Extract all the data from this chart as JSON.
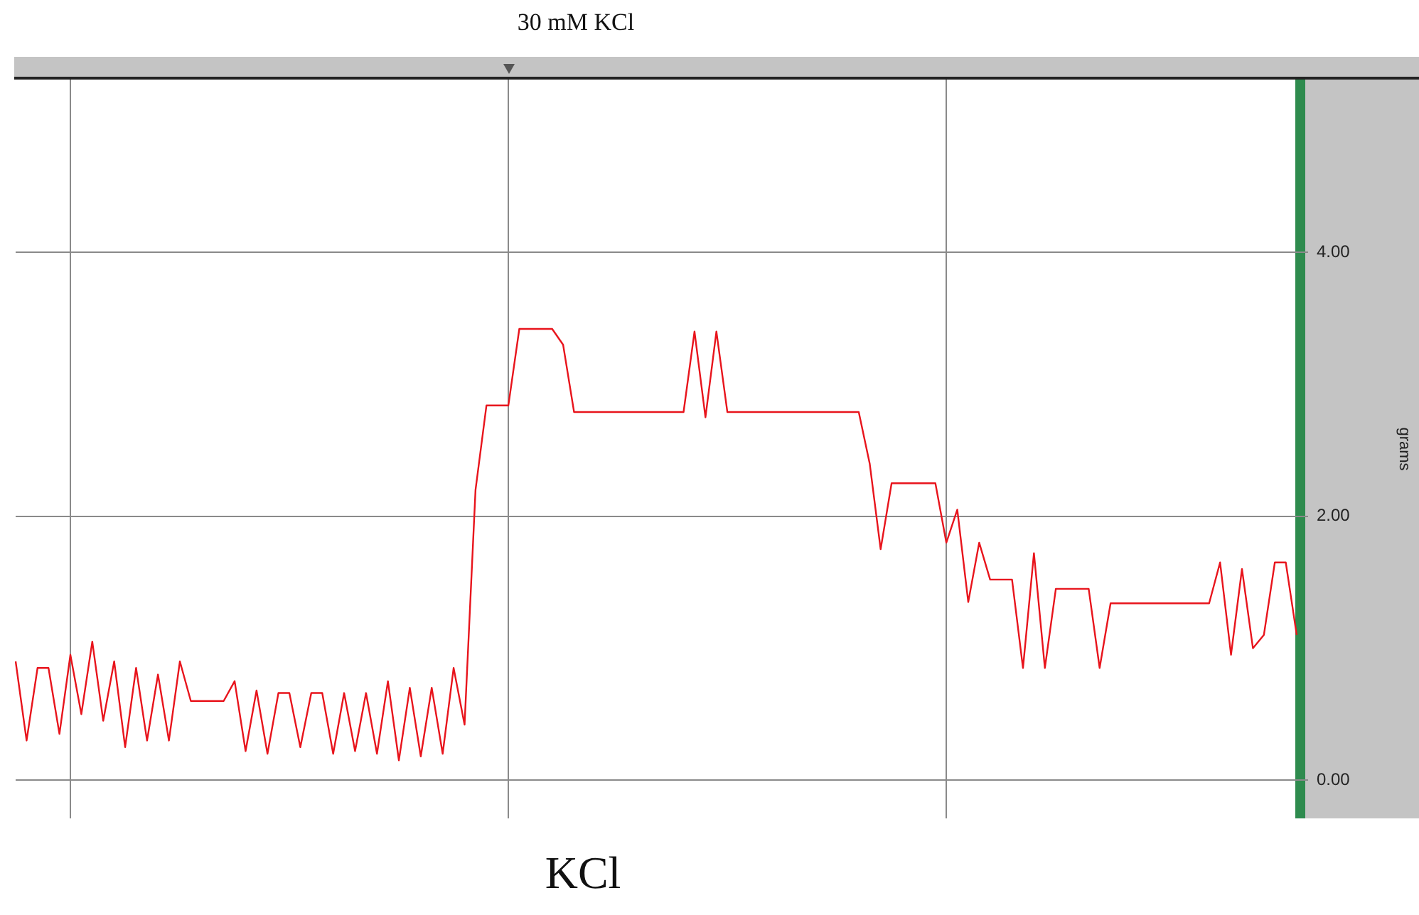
{
  "chart_data": {
    "type": "line",
    "title": "30 mM KCl",
    "ylabel": "grams",
    "annotations": [
      "KCl"
    ],
    "color": "#e8141c",
    "categories": [
      null,
      null,
      null,
      null,
      null,
      null,
      null,
      null,
      null,
      null,
      null,
      null,
      null,
      null,
      null,
      null,
      null,
      null,
      null,
      null,
      null,
      null,
      null,
      null,
      null,
      null,
      null,
      null,
      null,
      null,
      null,
      null,
      null,
      null,
      null,
      null,
      null,
      null,
      null,
      null,
      null,
      null,
      null,
      null,
      null,
      null,
      null,
      null,
      null,
      null,
      null,
      null,
      null,
      null,
      null,
      null,
      null,
      null,
      null,
      null,
      null,
      null,
      null,
      null,
      null,
      null,
      null,
      null,
      null,
      null,
      null,
      null,
      null,
      null,
      null,
      null,
      null,
      null,
      null,
      null,
      null,
      null,
      null,
      null,
      null,
      null,
      null,
      null,
      null,
      null,
      null,
      null,
      null,
      null,
      null,
      null,
      null,
      null,
      null,
      null,
      null,
      null,
      null,
      null,
      null,
      null,
      null,
      null,
      null,
      null,
      null,
      null,
      null,
      null,
      null,
      null,
      null,
      null
    ],
    "values": [
      0.9,
      0.3,
      0.85,
      0.85,
      0.35,
      0.95,
      0.5,
      1.05,
      0.45,
      0.9,
      0.25,
      0.85,
      0.3,
      0.8,
      0.3,
      0.9,
      0.6,
      0.6,
      0.6,
      0.6,
      0.75,
      0.22,
      0.68,
      0.2,
      0.66,
      0.66,
      0.25,
      0.66,
      0.66,
      0.2,
      0.66,
      0.22,
      0.66,
      0.2,
      0.75,
      0.15,
      0.7,
      0.18,
      0.7,
      0.2,
      0.85,
      0.42,
      2.2,
      2.84,
      2.84,
      2.84,
      3.42,
      3.42,
      3.42,
      3.42,
      3.3,
      2.79,
      2.79,
      2.79,
      2.79,
      2.79,
      2.79,
      2.79,
      2.79,
      2.79,
      2.79,
      2.79,
      3.4,
      2.75,
      3.4,
      2.79,
      2.79,
      2.79,
      2.79,
      2.79,
      2.79,
      2.79,
      2.79,
      2.79,
      2.79,
      2.79,
      2.79,
      2.79,
      2.4,
      1.75,
      2.25,
      2.25,
      2.25,
      2.25,
      2.25,
      1.8,
      2.05,
      1.35,
      1.8,
      1.52,
      1.52,
      1.52,
      0.85,
      1.72,
      0.85,
      1.45,
      1.45,
      1.45,
      1.45,
      0.85,
      1.34,
      1.34,
      1.34,
      1.34,
      1.34,
      1.34,
      1.34,
      1.34,
      1.34,
      1.34,
      1.65,
      0.95,
      1.6,
      1.0,
      1.1,
      1.65,
      1.65,
      1.1
    ],
    "ylim": [
      -0.29,
      5.31
    ],
    "yticks": [
      {
        "value": 0,
        "label": "0.00"
      },
      {
        "value": 2,
        "label": "2.00"
      },
      {
        "value": 4,
        "label": "4.00"
      }
    ],
    "tick_labels": "y",
    "grid": true,
    "legend": false,
    "marker": "none",
    "line_style": "solid"
  }
}
